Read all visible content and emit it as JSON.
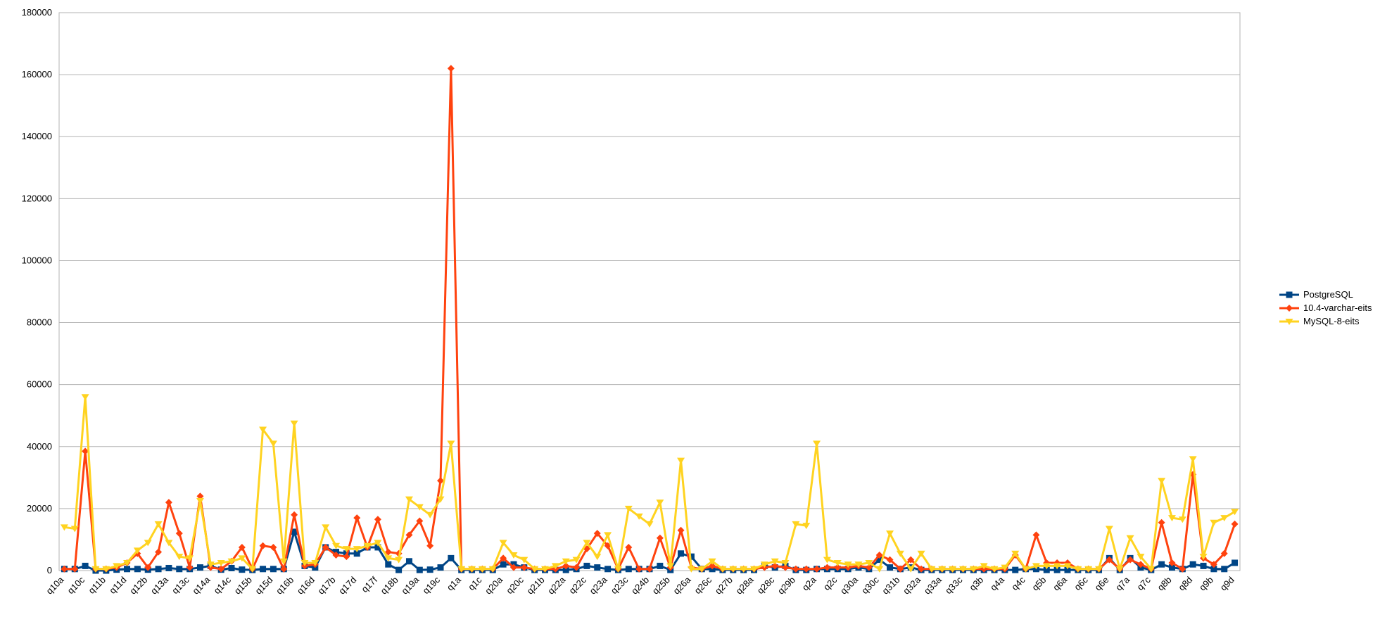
{
  "chart_data": {
    "type": "line",
    "categories": [
      "q10a",
      null,
      "q10c",
      null,
      "q11b",
      null,
      "q11d",
      null,
      "q12b",
      null,
      "q13a",
      null,
      "q13c",
      null,
      "q14a",
      null,
      "q14c",
      null,
      "q15b",
      null,
      "q15d",
      null,
      "q16b",
      null,
      "q16d",
      null,
      "q17b",
      null,
      "q17d",
      null,
      "q17f",
      null,
      "q18b",
      null,
      "q19a",
      null,
      "q19c",
      null,
      "q1a",
      null,
      "q1c",
      null,
      "q20a",
      null,
      "q20c",
      null,
      "q21b",
      null,
      "q22a",
      null,
      "q22c",
      null,
      "q23a",
      null,
      "q23c",
      null,
      "q24b",
      null,
      "q25b",
      null,
      "q26a",
      null,
      "q26c",
      null,
      "q27b",
      null,
      "q28a",
      null,
      "q28c",
      null,
      "q29b",
      null,
      "q2a",
      null,
      "q2c",
      null,
      "q30a",
      null,
      "q30c",
      null,
      "q31b",
      null,
      "q32a",
      null,
      "q33a",
      null,
      "q33c",
      null,
      "q3b",
      null,
      "q4a",
      null,
      "q4c",
      null,
      "q5b",
      null,
      "q6a",
      null,
      "q6c",
      null,
      "q6e",
      null,
      "q7a",
      null,
      "q7c",
      null,
      "q8b",
      null,
      "q8d",
      null,
      "q9b",
      null,
      "q9d"
    ],
    "series": [
      {
        "name": "PostgreSQL",
        "color": "#004586",
        "marker": "square",
        "values": [
          500,
          500,
          1500,
          0,
          0,
          300,
          500,
          500,
          300,
          500,
          800,
          500,
          500,
          1000,
          1500,
          300,
          800,
          300,
          200,
          500,
          500,
          500,
          12500,
          1500,
          1000,
          7500,
          6000,
          5500,
          5500,
          7500,
          7500,
          2000,
          200,
          3000,
          200,
          300,
          1000,
          4000,
          200,
          200,
          200,
          200,
          2000,
          2000,
          1000,
          200,
          200,
          200,
          200,
          500,
          1500,
          1000,
          500,
          200,
          500,
          500,
          500,
          1500,
          200,
          5500,
          4500,
          500,
          500,
          200,
          200,
          200,
          200,
          1500,
          1000,
          1500,
          200,
          200,
          500,
          500,
          500,
          500,
          1000,
          500,
          3500,
          1000,
          500,
          1000,
          200,
          200,
          200,
          200,
          200,
          200,
          200,
          200,
          200,
          200,
          500,
          500,
          200,
          200,
          200,
          200,
          200,
          200,
          4000,
          200,
          4000,
          1000,
          200,
          2000,
          1000,
          500,
          2000,
          1500,
          500,
          500,
          2500
        ]
      },
      {
        "name": "10.4-varchar-eits",
        "color": "#ff420e",
        "marker": "diamond",
        "values": [
          500,
          500,
          38500,
          500,
          500,
          1000,
          2500,
          5500,
          1000,
          6000,
          22000,
          12000,
          1000,
          24000,
          1000,
          500,
          3000,
          7500,
          500,
          8000,
          7500,
          500,
          18000,
          1500,
          2000,
          7500,
          5000,
          4500,
          17000,
          7500,
          16500,
          6000,
          5500,
          11500,
          16000,
          8000,
          29000,
          162000,
          500,
          500,
          500,
          500,
          4000,
          1000,
          1000,
          500,
          500,
          500,
          1500,
          1000,
          7000,
          12000,
          8000,
          500,
          7500,
          500,
          500,
          10500,
          1000,
          13000,
          1000,
          500,
          1500,
          500,
          500,
          500,
          500,
          1000,
          1500,
          1000,
          500,
          500,
          500,
          1000,
          1000,
          1000,
          1500,
          1000,
          5000,
          3500,
          500,
          3500,
          500,
          500,
          500,
          500,
          500,
          500,
          500,
          500,
          500,
          5000,
          500,
          11500,
          2500,
          2500,
          2500,
          500,
          500,
          500,
          3500,
          500,
          3500,
          2000,
          500,
          15500,
          2500,
          500,
          31000,
          4000,
          2000,
          5500,
          15000
        ]
      },
      {
        "name": "MySQL-8-eits",
        "color": "#ffd320",
        "marker": "triangle",
        "values": [
          14000,
          13500,
          56000,
          500,
          500,
          1500,
          2500,
          6500,
          9000,
          15000,
          9000,
          4500,
          4000,
          22500,
          2000,
          2500,
          3000,
          4000,
          500,
          45500,
          41000,
          3000,
          47500,
          2500,
          2500,
          14000,
          8000,
          7000,
          7000,
          8000,
          9000,
          4000,
          3500,
          23000,
          20500,
          18000,
          23000,
          41000,
          500,
          500,
          500,
          500,
          9000,
          5000,
          3500,
          500,
          500,
          1500,
          3000,
          3500,
          9000,
          4500,
          11500,
          500,
          20000,
          17500,
          15000,
          22000,
          1500,
          35500,
          500,
          500,
          3000,
          500,
          500,
          500,
          500,
          2000,
          3000,
          2500,
          15000,
          14500,
          41000,
          3500,
          2500,
          2000,
          2000,
          2500,
          500,
          12000,
          5500,
          500,
          5500,
          500,
          500,
          500,
          500,
          500,
          1500,
          500,
          1000,
          5500,
          500,
          1500,
          1500,
          1500,
          1500,
          500,
          500,
          500,
          13500,
          500,
          10500,
          4500,
          500,
          29000,
          17000,
          16500,
          36000,
          4500,
          15500,
          17000,
          19000
        ]
      }
    ],
    "ylim": [
      0,
      180000
    ],
    "yticks": [
      0,
      20000,
      40000,
      60000,
      80000,
      100000,
      120000,
      140000,
      160000,
      180000
    ],
    "grid": true,
    "legend": "right"
  }
}
